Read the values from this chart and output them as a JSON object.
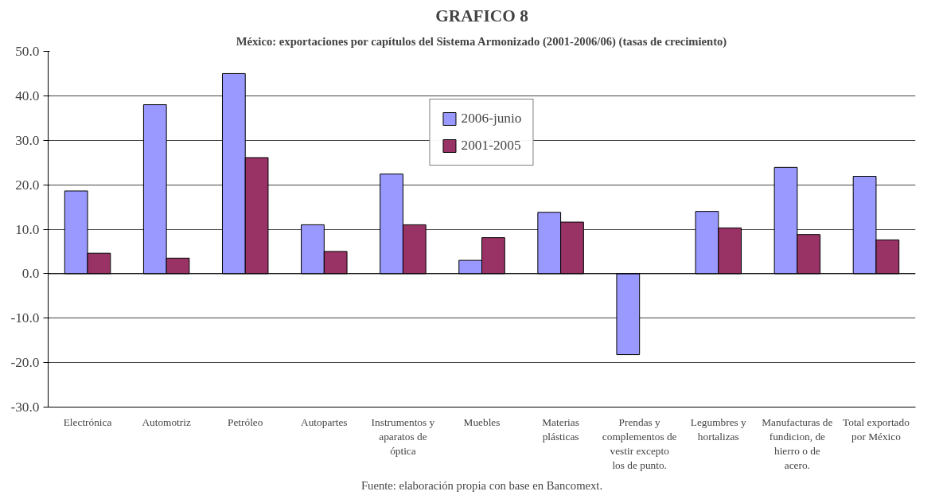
{
  "chart_data": {
    "type": "bar",
    "title": "GRAFICO 8",
    "subtitle": "México: exportaciones por capítulos del Sistema Armonizado (2001-2006/06) (tasas de crecimiento)",
    "categories": [
      "Electrónica",
      "Automotriz",
      "Petróleo",
      "Autopartes",
      "Instrumentos y aparatos de óptica",
      "Muebles",
      "Materias plásticas",
      "Prendas y complementos de vestir excepto los de punto.",
      "Legumbres y hortalizas",
      "Manufacturas de fundicion, de hierro o de acero.",
      "Total exportado por México"
    ],
    "series": [
      {
        "name": "2006-junio",
        "color": "#9999ff",
        "values": [
          18.6,
          38.0,
          45.0,
          11.0,
          22.4,
          3.0,
          13.8,
          -18.2,
          14.0,
          23.9,
          21.9
        ]
      },
      {
        "name": "2001-2005",
        "color": "#993366",
        "values": [
          4.6,
          3.5,
          26.1,
          5.0,
          11.0,
          8.1,
          11.6,
          null,
          10.3,
          8.8,
          7.6
        ]
      }
    ],
    "ylim": [
      -30,
      50
    ],
    "yticks": [
      {
        "value": -30,
        "label": "-30.0"
      },
      {
        "value": -20,
        "label": "-20.0"
      },
      {
        "value": -10,
        "label": "-10.0"
      },
      {
        "value": 0,
        "label": "0.0"
      },
      {
        "value": 10,
        "label": "10.0"
      },
      {
        "value": 20,
        "label": "20.0"
      },
      {
        "value": 30,
        "label": "30.0"
      },
      {
        "value": 40,
        "label": "40.0"
      },
      {
        "value": 50,
        "label": "50.0"
      }
    ],
    "grid": "y",
    "legend": "top",
    "annotations": [
      "Fuente: elaboración propia con base en Bancomext."
    ]
  }
}
